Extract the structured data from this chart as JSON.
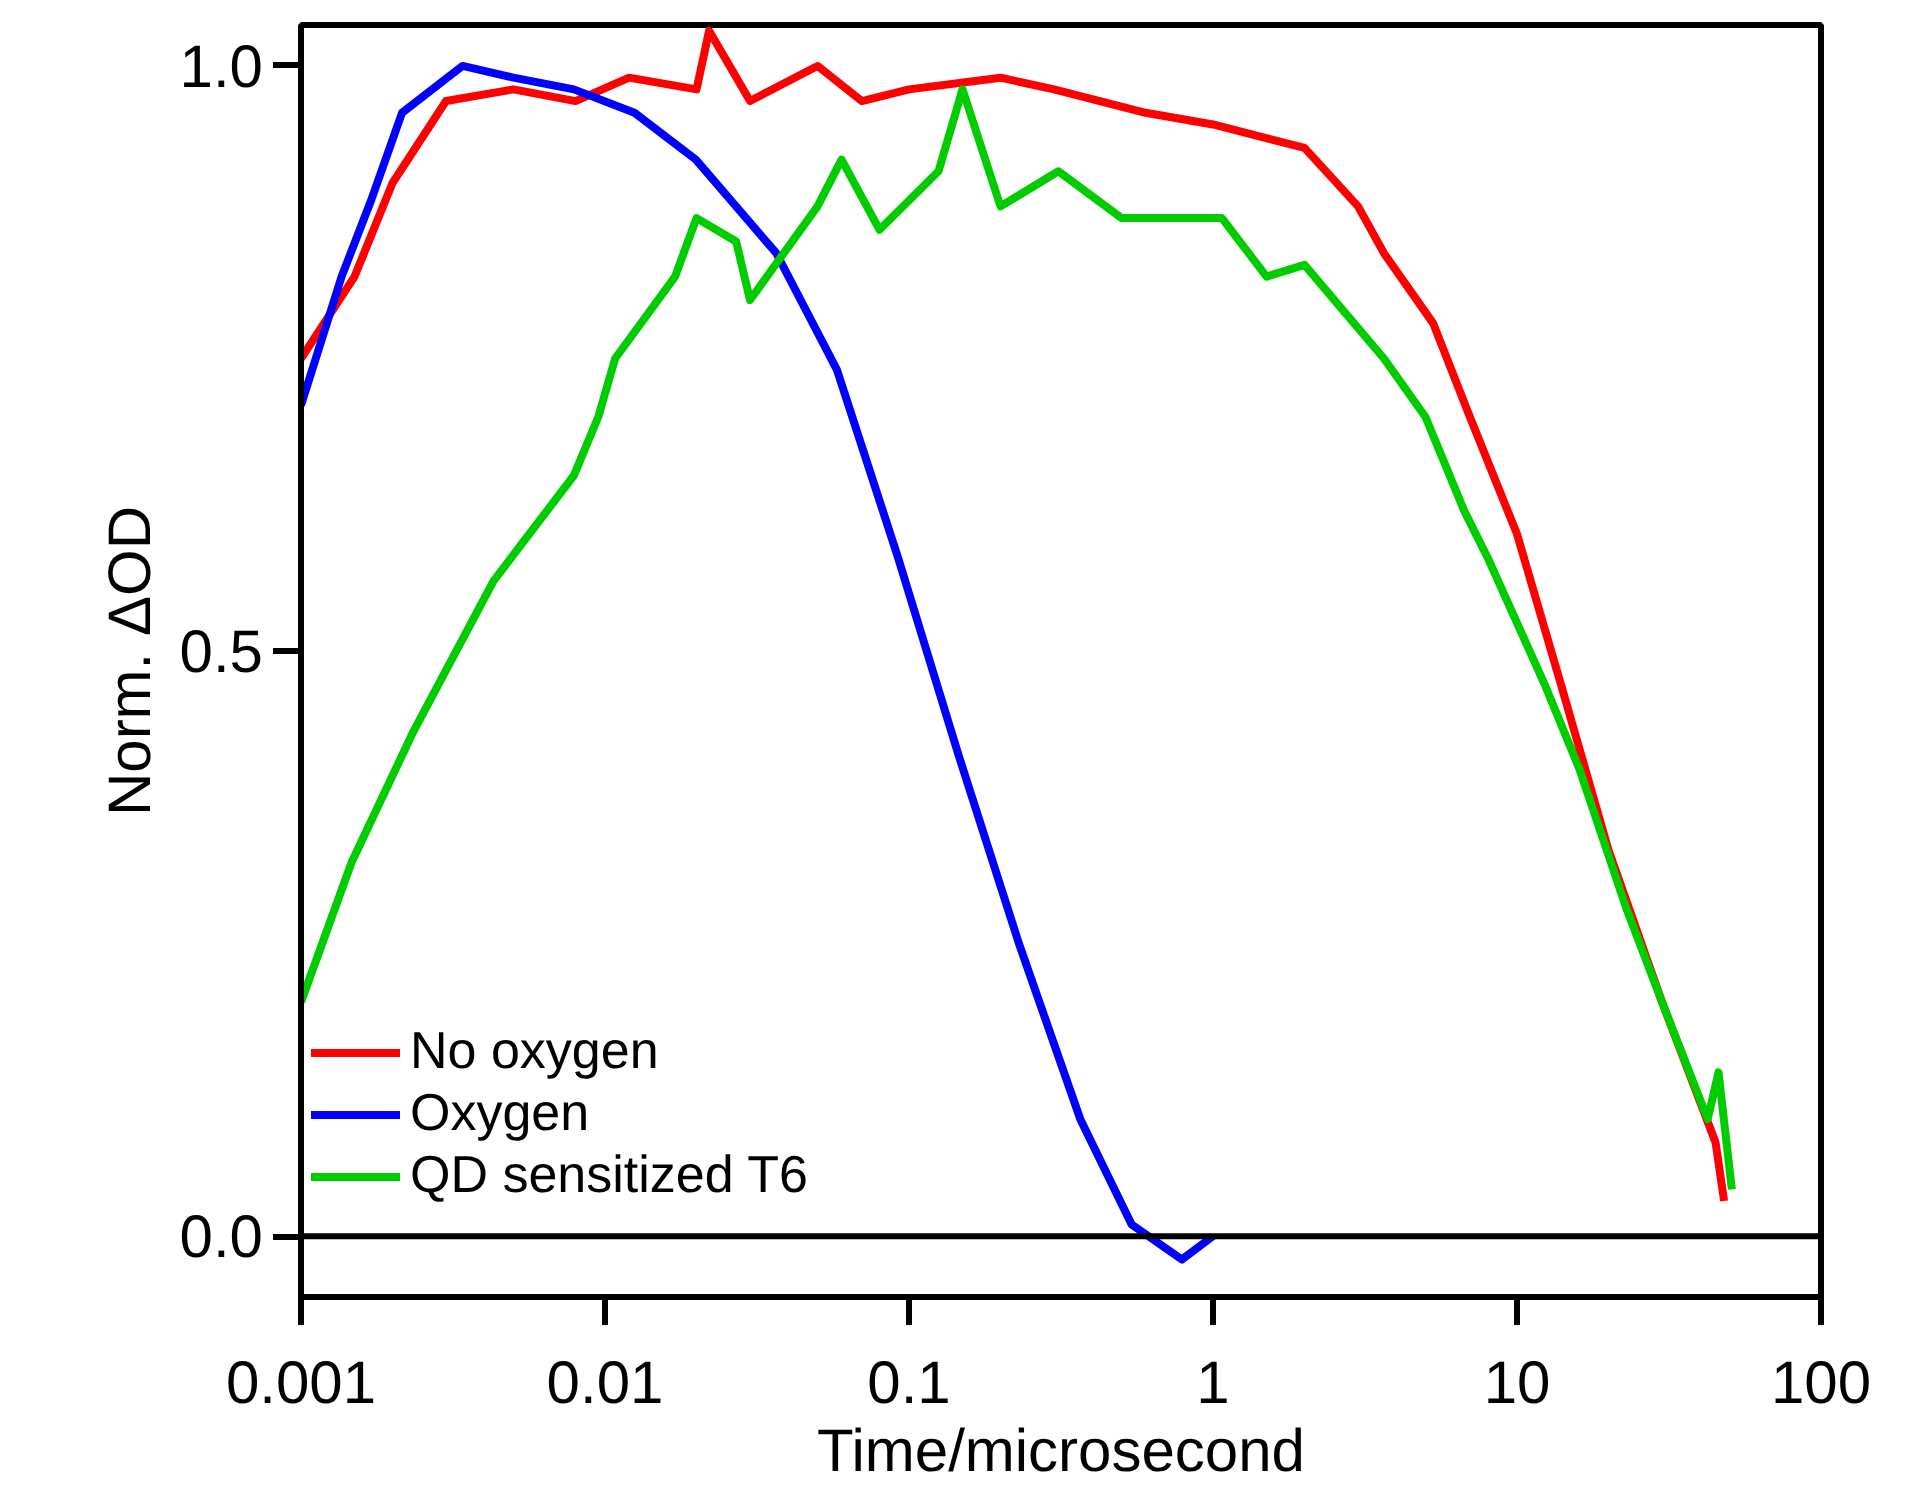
{
  "chart_data": {
    "type": "line",
    "xlabel": "Time/microsecond",
    "ylabel": "Norm. ΔOD",
    "log": "x",
    "grid": false,
    "legend": "bottom left",
    "line_style": "solid",
    "marker": "none",
    "xlim": [
      0.001,
      100
    ],
    "xticks": [
      0.001,
      0.01,
      0.1,
      1,
      10,
      100
    ],
    "ylim": [
      -0.052,
      1.035
    ],
    "yticks": [
      {
        "value": 0,
        "label": "0.0"
      },
      0.5,
      {
        "value": 1,
        "label": "1.0"
      }
    ],
    "ref_lines": [
      {
        "axis": "y",
        "value": 0,
        "color": "#000000"
      }
    ],
    "series": [
      {
        "name": "No oxygen",
        "color": "#ff0000",
        "x": [
          0.001,
          0.0015,
          0.002,
          0.003,
          0.005,
          0.008,
          0.012,
          0.02,
          0.022,
          0.03,
          0.05,
          0.07,
          0.1,
          0.2,
          0.3,
          0.6,
          1,
          2,
          3,
          3.65,
          5.3,
          7,
          10,
          14,
          20,
          30,
          45,
          48
        ],
        "values": [
          0.75,
          0.82,
          0.9,
          0.97,
          0.98,
          0.97,
          0.99,
          0.98,
          1.03,
          0.97,
          1.0,
          0.97,
          0.98,
          0.99,
          0.98,
          0.96,
          0.95,
          0.93,
          0.88,
          0.84,
          0.78,
          0.7,
          0.6,
          0.47,
          0.33,
          0.2,
          0.08,
          0.03
        ]
      },
      {
        "name": "Oxygen",
        "color": "#0000ff",
        "x": [
          0.001,
          0.00136,
          0.0017,
          0.00215,
          0.0034,
          0.005,
          0.0079,
          0.0125,
          0.0199,
          0.0366,
          0.058,
          0.092,
          0.146,
          0.23,
          0.366,
          0.54,
          0.79,
          1.0
        ],
        "values": [
          0.71,
          0.82,
          0.885,
          0.96,
          1.0,
          0.99,
          0.98,
          0.96,
          0.92,
          0.84,
          0.74,
          0.58,
          0.41,
          0.25,
          0.1,
          0.01,
          -0.02,
          0.0
        ]
      },
      {
        "name": "QD sensitized T6",
        "color": "#00cc00",
        "x": [
          0.001,
          0.00147,
          0.00233,
          0.0043,
          0.0079,
          0.0095,
          0.0108,
          0.017,
          0.02,
          0.027,
          0.03,
          0.05,
          0.06,
          0.08,
          0.125,
          0.15,
          0.2,
          0.31,
          0.5,
          1.07,
          1.5,
          2,
          3.65,
          5,
          6.7,
          8,
          12.4,
          16,
          22.9,
          30,
          42.4,
          46,
          50.9
        ],
        "values": [
          0.2,
          0.32,
          0.43,
          0.56,
          0.65,
          0.7,
          0.75,
          0.82,
          0.87,
          0.85,
          0.8,
          0.88,
          0.92,
          0.86,
          0.91,
          0.98,
          0.88,
          0.91,
          0.87,
          0.87,
          0.82,
          0.83,
          0.75,
          0.7,
          0.62,
          0.58,
          0.47,
          0.4,
          0.28,
          0.2,
          0.1,
          0.14,
          0.04
        ]
      }
    ]
  }
}
